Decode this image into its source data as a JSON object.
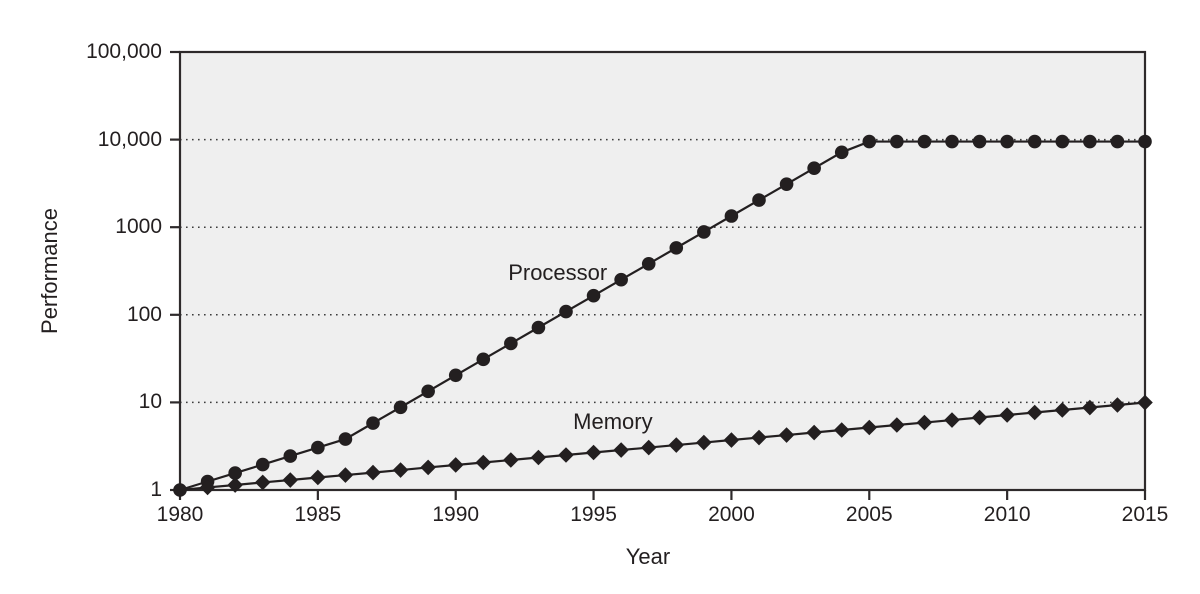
{
  "figure": {
    "background": "#ffffff"
  },
  "chart_data": {
    "type": "line",
    "title": "",
    "xlabel": "Year",
    "ylabel": "Performance",
    "x_axis": {
      "min": 1980,
      "max": 2015,
      "ticks": [
        1980,
        1985,
        1990,
        1995,
        2000,
        2005,
        2010,
        2015
      ]
    },
    "y_axis": {
      "scale": "log",
      "min": 1,
      "max": 100000,
      "tick_values": [
        1,
        10,
        100,
        1000,
        10000,
        100000
      ],
      "tick_labels": [
        "1",
        "10",
        "100",
        "1000",
        "10,000",
        "100,000"
      ]
    },
    "gridlines": {
      "style": "dotted",
      "orientation": "horizontal",
      "values": [
        10,
        100,
        1000,
        10000
      ]
    },
    "legend_position": "inline-annotations",
    "colors": {
      "plot_background": "#efefef",
      "line": "#231f20",
      "text": "#231f20",
      "grid": "#3c3c3c",
      "border": "#2e2a2b"
    },
    "x": [
      1980,
      1981,
      1982,
      1983,
      1984,
      1985,
      1986,
      1987,
      1988,
      1989,
      1990,
      1991,
      1992,
      1993,
      1994,
      1995,
      1996,
      1997,
      1998,
      1999,
      2000,
      2001,
      2002,
      2003,
      2004,
      2005,
      2006,
      2007,
      2008,
      2009,
      2010,
      2011,
      2012,
      2013,
      2014,
      2015
    ],
    "series": [
      {
        "name": "Processor",
        "marker": "circle",
        "values": [
          1,
          1.25,
          1.56,
          1.95,
          2.44,
          3.05,
          3.81,
          5.8,
          8.8,
          13.4,
          20.4,
          31,
          47.1,
          71.6,
          108.8,
          165.4,
          251.4,
          382.1,
          580.8,
          882.8,
          1342,
          2040,
          3101,
          4713,
          7164,
          9500,
          9500,
          9500,
          9500,
          9500,
          9500,
          9500,
          9500,
          9500,
          9500,
          9500
        ]
      },
      {
        "name": "Memory",
        "marker": "diamond",
        "values": [
          1,
          1.07,
          1.14,
          1.22,
          1.3,
          1.39,
          1.48,
          1.58,
          1.69,
          1.81,
          1.93,
          2.06,
          2.2,
          2.35,
          2.51,
          2.68,
          2.86,
          3.05,
          3.26,
          3.48,
          3.72,
          3.97,
          4.24,
          4.53,
          4.84,
          5.17,
          5.52,
          5.89,
          6.29,
          6.72,
          7.18,
          7.67,
          8.19,
          8.74,
          9.34,
          9.97
        ]
      }
    ],
    "annotations": [
      {
        "text": "Processor",
        "x": 1993.7,
        "y": 300
      },
      {
        "text": "Memory",
        "x": 1995.7,
        "y": 5.9
      }
    ]
  }
}
